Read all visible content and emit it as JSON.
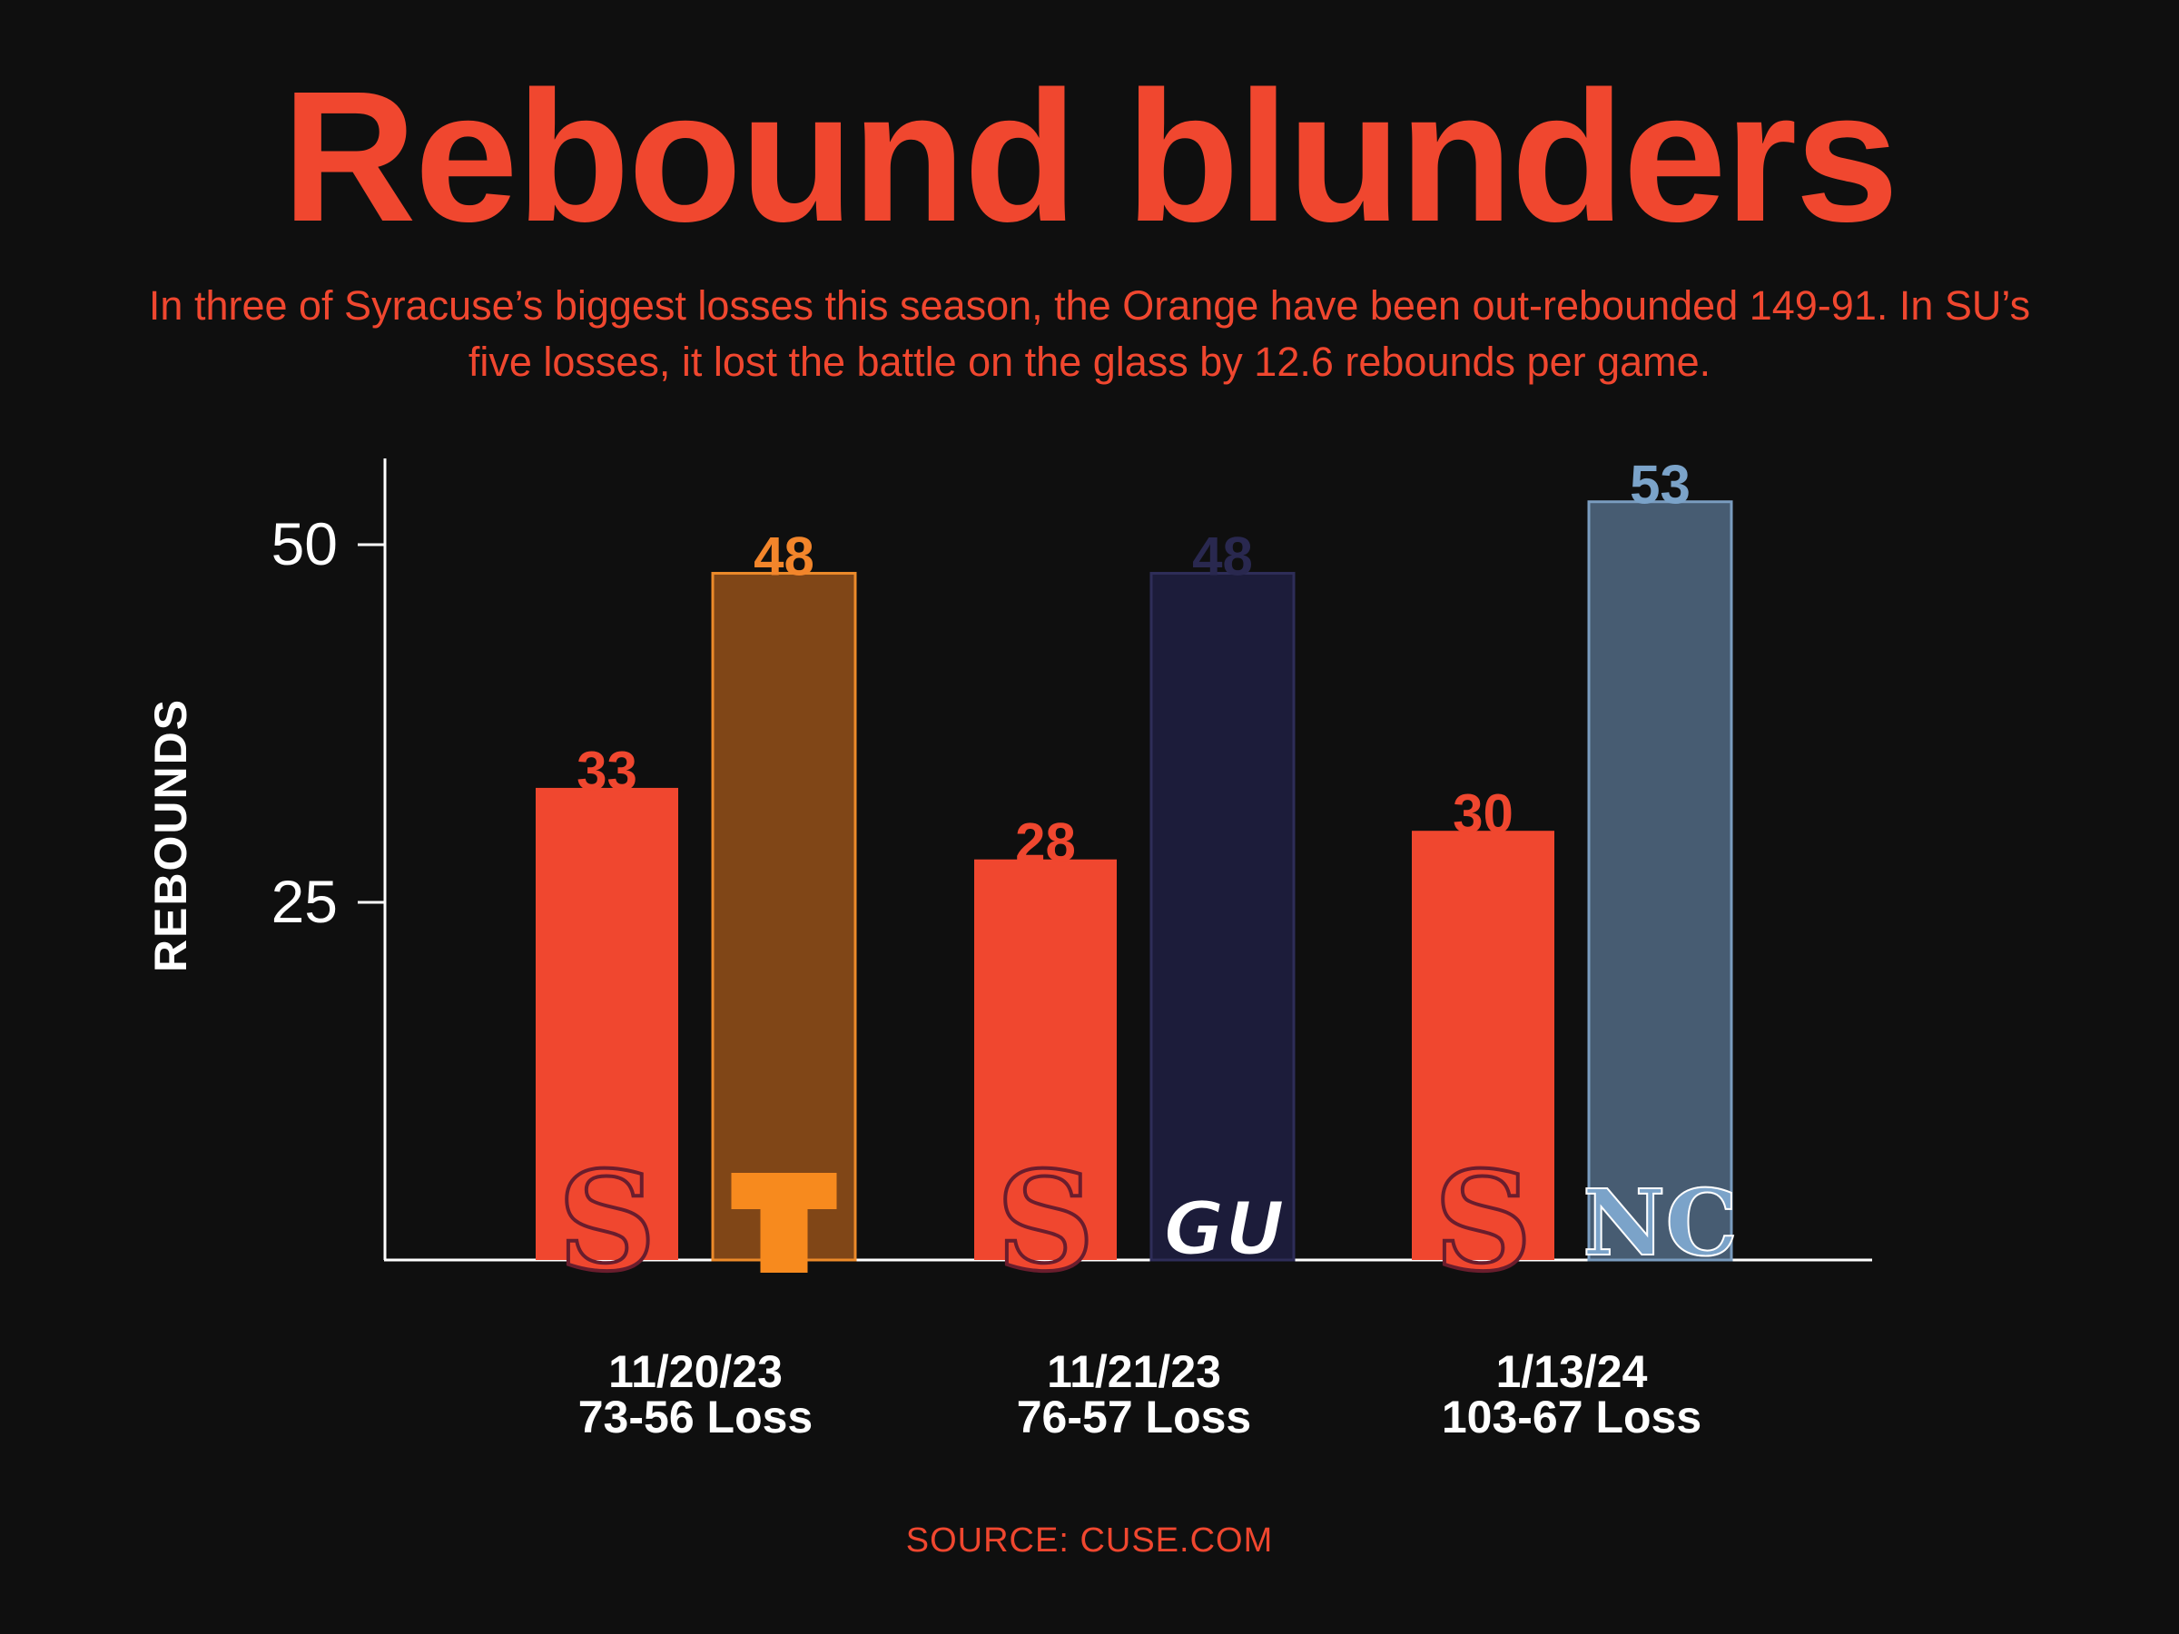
{
  "title": "Rebound blunders",
  "subtitle": "In three of Syracuse’s biggest losses this season, the Orange have been out-rebounded 149-91. In SU’s five losses, it lost the battle on the glass by 12.6 rebounds per game.",
  "source": "SOURCE: CUSE.COM",
  "colors": {
    "background": "#0f0f0f",
    "accent": "#f0472f",
    "text": "#ffffff"
  },
  "chart_data": {
    "type": "bar",
    "ylabel": "REBOUNDS",
    "ylim": [
      0,
      56
    ],
    "yticks": [
      25,
      50
    ],
    "grid": false,
    "categories": [
      "11/20/23",
      "11/21/23",
      "1/13/24"
    ],
    "results": [
      "73-56 Loss",
      "76-57 Loss",
      "103-67 Loss"
    ],
    "series": [
      {
        "values": [
          33,
          28,
          30
        ],
        "logos": [
          "S",
          "S",
          "S"
        ],
        "colors": [
          "#f0472f",
          "#f0472f",
          "#f0472f"
        ]
      },
      {
        "values": [
          48,
          48,
          53
        ],
        "logos": [
          "T",
          "GU",
          "NC"
        ],
        "colors": [
          "#804617",
          "#1c1c3a",
          "#475c72"
        ],
        "strokes": [
          "#ec8a2a",
          "#2e2d58",
          "#7a9cbf"
        ],
        "label_colors": [
          "#f2852b",
          "#29284f",
          "#7ba3c9"
        ]
      }
    ]
  }
}
